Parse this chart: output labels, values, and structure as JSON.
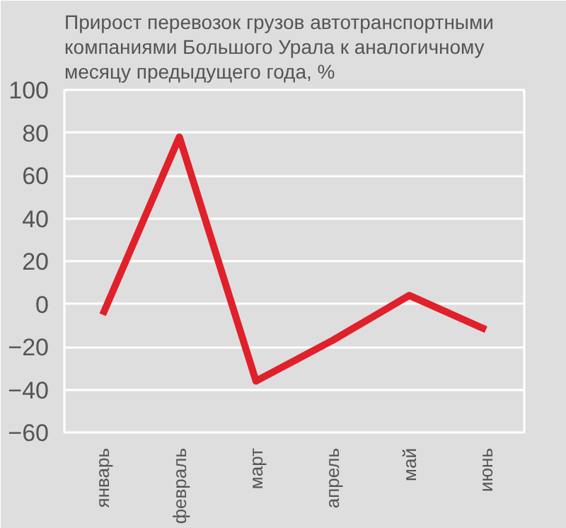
{
  "chart_data": {
    "type": "line",
    "title": "Прирост перевозок грузов автотранспортными компаниями Большого Урала к аналогичному месяцу предыдущего года, %",
    "categories": [
      "январь",
      "февраль",
      "март",
      "апрель",
      "май",
      "июнь"
    ],
    "series": [
      {
        "color": "#e0202a",
        "values": [
          -5,
          78,
          -36,
          -17,
          4,
          -12
        ]
      }
    ],
    "ylim": [
      -60,
      100
    ],
    "yticks": [
      -60,
      -40,
      -20,
      0,
      20,
      40,
      60,
      80,
      100
    ],
    "grid": "y",
    "marker": "none",
    "line_style": "solid"
  }
}
